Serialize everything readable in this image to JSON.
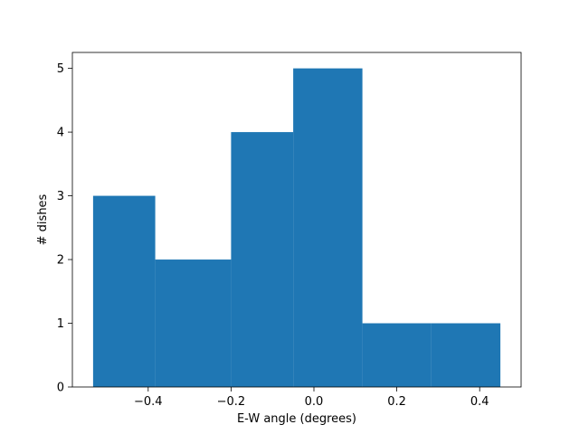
{
  "chart_data": {
    "type": "bar",
    "title": "",
    "xlabel": "E-W angle (degrees)",
    "ylabel": "# dishes",
    "xlim": [
      -0.583,
      0.5
    ],
    "ylim": [
      0,
      5.25
    ],
    "grid": false,
    "bar_color": "#1f77b4",
    "bins": [
      {
        "x0": -0.533,
        "x1": -0.383,
        "count": 3
      },
      {
        "x0": -0.383,
        "x1": -0.2,
        "count": 2
      },
      {
        "x0": -0.2,
        "x1": -0.05,
        "count": 4
      },
      {
        "x0": -0.05,
        "x1": 0.117,
        "count": 5
      },
      {
        "x0": 0.117,
        "x1": 0.283,
        "count": 1
      },
      {
        "x0": 0.283,
        "x1": 0.45,
        "count": 1
      }
    ],
    "xticks": [
      -0.4,
      -0.2,
      0.0,
      0.2,
      0.4
    ],
    "xtick_labels": [
      "−0.4",
      "−0.2",
      "0.0",
      "0.2",
      "0.4"
    ],
    "yticks": [
      0,
      1,
      2,
      3,
      4,
      5
    ],
    "ytick_labels": [
      "0",
      "1",
      "2",
      "3",
      "4",
      "5"
    ]
  }
}
